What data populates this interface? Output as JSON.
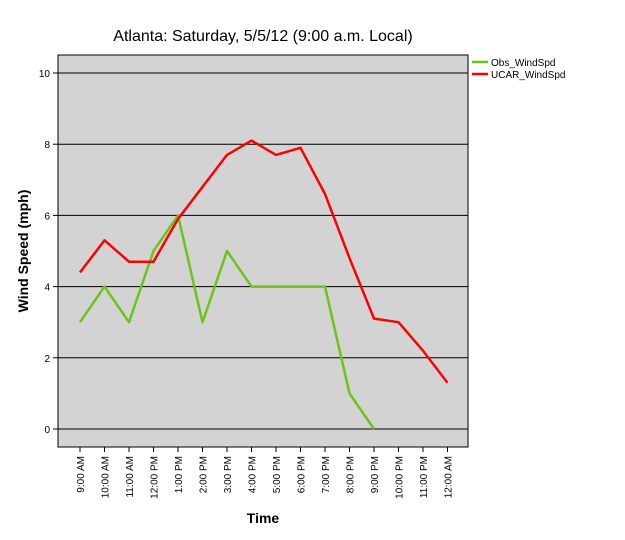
{
  "chart_data": {
    "type": "line",
    "title": "Atlanta: Saturday, 5/5/12 (9:00 a.m. Local)",
    "xlabel": "Time",
    "ylabel": "Wind Speed (mph)",
    "ylim": [
      0,
      10
    ],
    "yticks": [
      "0",
      "2",
      "4",
      "6",
      "8",
      "10"
    ],
    "grid": true,
    "legend_position": "top-right",
    "categories": [
      "9:00 AM",
      "10:00 AM",
      "11:00 AM",
      "12:00 PM",
      "1:00 PM",
      "2:00 PM",
      "3:00 PM",
      "4:00 PM",
      "5:00 PM",
      "6:00 PM",
      "7:00 PM",
      "8:00 PM",
      "9:00 PM",
      "10:00 PM",
      "11:00 PM",
      "12:00 AM"
    ],
    "series": [
      {
        "name": "Obs_WindSpd",
        "color": "#6cc417",
        "values": [
          3,
          4,
          3,
          5,
          6,
          3,
          5,
          4,
          4,
          4,
          4,
          1,
          0,
          null,
          null,
          null
        ]
      },
      {
        "name": "UCAR_WindSpd",
        "color": "#ff0000",
        "values": [
          4.4,
          5.3,
          4.7,
          4.7,
          5.9,
          6.8,
          7.7,
          8.1,
          7.7,
          7.9,
          6.6,
          4.8,
          3.1,
          3.0,
          2.2,
          1.3
        ]
      }
    ]
  }
}
